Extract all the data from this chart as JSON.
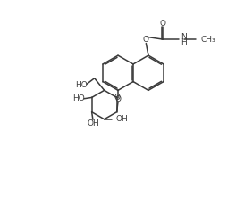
{
  "background_color": "#ffffff",
  "line_color": "#3a3a3a",
  "line_width": 1.1,
  "text_color": "#3a3a3a",
  "font_size": 6.5,
  "figsize": [
    2.64,
    2.21
  ],
  "dpi": 100,
  "xlim": [
    0,
    10
  ],
  "ylim": [
    0,
    8.4
  ]
}
